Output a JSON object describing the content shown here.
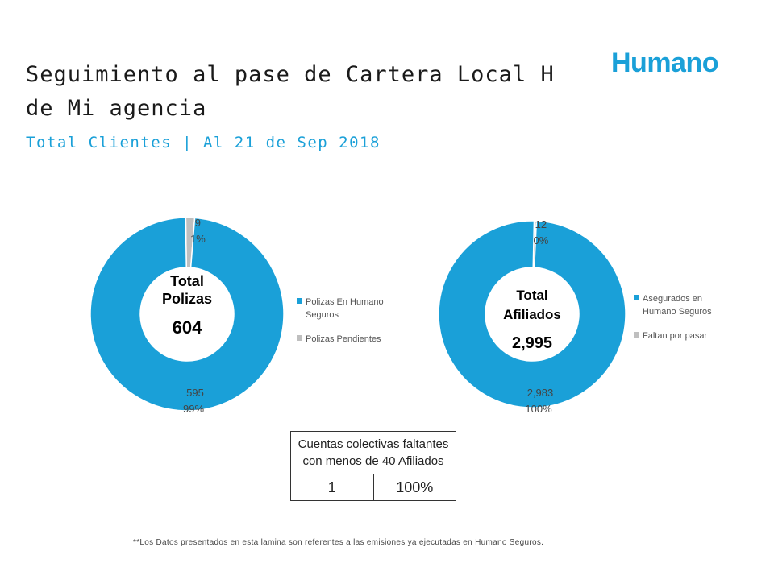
{
  "header": {
    "title_line1": "Seguimiento al pase de Cartera Local H",
    "title_line2": "de Mi agencia",
    "subtitle": "Total Clientes | Al 21 de Sep 2018",
    "logo_text": "Humano"
  },
  "colors": {
    "primary": "#1aa0d8",
    "secondary": "#bfbfbf",
    "logo": "#1aa0d8"
  },
  "chart_data": [
    {
      "type": "pie",
      "donut": true,
      "center_label": [
        "Total",
        "Polizas"
      ],
      "center_value": "604",
      "series": [
        {
          "name": "Polizas En Humano Seguros",
          "value": 595,
          "value_label": "595",
          "percent_label": "99%",
          "color": "#1aa0d8"
        },
        {
          "name": "Polizas Pendientes",
          "value": 9,
          "value_label": "9",
          "percent_label": "1%",
          "color": "#bfbfbf"
        }
      ],
      "legend_position": "right"
    },
    {
      "type": "pie",
      "donut": true,
      "center_label": [
        "Total",
        "Afiliados"
      ],
      "center_value": "2,995",
      "series": [
        {
          "name": "Asegurados en Humano Seguros",
          "value": 2983,
          "value_label": "2,983",
          "percent_label": "100%",
          "color": "#1aa0d8"
        },
        {
          "name": "Faltan por pasar",
          "value": 12,
          "value_label": "12",
          "percent_label": "0%",
          "color": "#bfbfbf"
        }
      ],
      "legend_position": "right"
    }
  ],
  "table": {
    "header": "Cuentas colectivas faltantes con menos de 40 Afiliados",
    "value": "1",
    "percent": "100%"
  },
  "footnote": "**Los Datos presentados en esta lamina son referentes a las emisiones ya ejecutadas en Humano Seguros."
}
